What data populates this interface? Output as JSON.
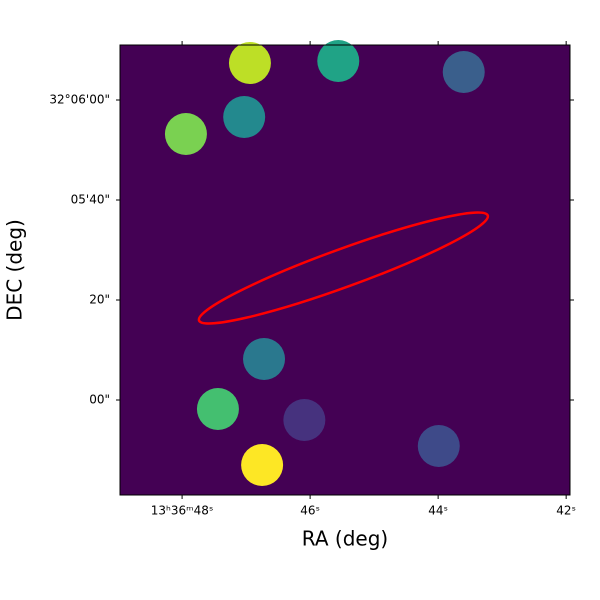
{
  "chart_data": {
    "type": "image",
    "xlabel": "RA (deg)",
    "ylabel": "DEC (deg)",
    "background": "#440154",
    "xlim": [
      48.97,
      41.94
    ],
    "ylim": [
      -19,
      71
    ],
    "xticks": [
      {
        "value": 48,
        "label": "13ʰ36ᵐ48ˢ"
      },
      {
        "value": 46,
        "label": "46ˢ"
      },
      {
        "value": 44,
        "label": "44ˢ"
      },
      {
        "value": 42,
        "label": "42ˢ"
      }
    ],
    "yticks": [
      {
        "value": 60,
        "label": "32°06'00\""
      },
      {
        "value": 40,
        "label": "05'40\""
      },
      {
        "value": 20,
        "label": "20\""
      },
      {
        "value": 0,
        "label": "00\""
      }
    ],
    "radius": 4.2,
    "sources": {
      "x": [
        46.94,
        45.56,
        43.6,
        47.03,
        47.94,
        46.72,
        47.44,
        46.09,
        43.99,
        46.75
      ],
      "y": [
        67.4,
        67.8,
        65.6,
        56.6,
        53.2,
        8.2,
        -1.8,
        -4.0,
        -9.2,
        -13.0
      ],
      "colors": [
        "#bddf26",
        "#20a386",
        "#3a5f8c",
        "#23898e",
        "#7ad151",
        "#2a788e",
        "#44bf70",
        "#46327e",
        "#3e4a89",
        "#fde725"
      ]
    },
    "ellipse": {
      "x": 45.48,
      "y": 26.4,
      "width": 4.8,
      "height": 7.6,
      "angle": -20,
      "color": "#ff0000"
    }
  }
}
